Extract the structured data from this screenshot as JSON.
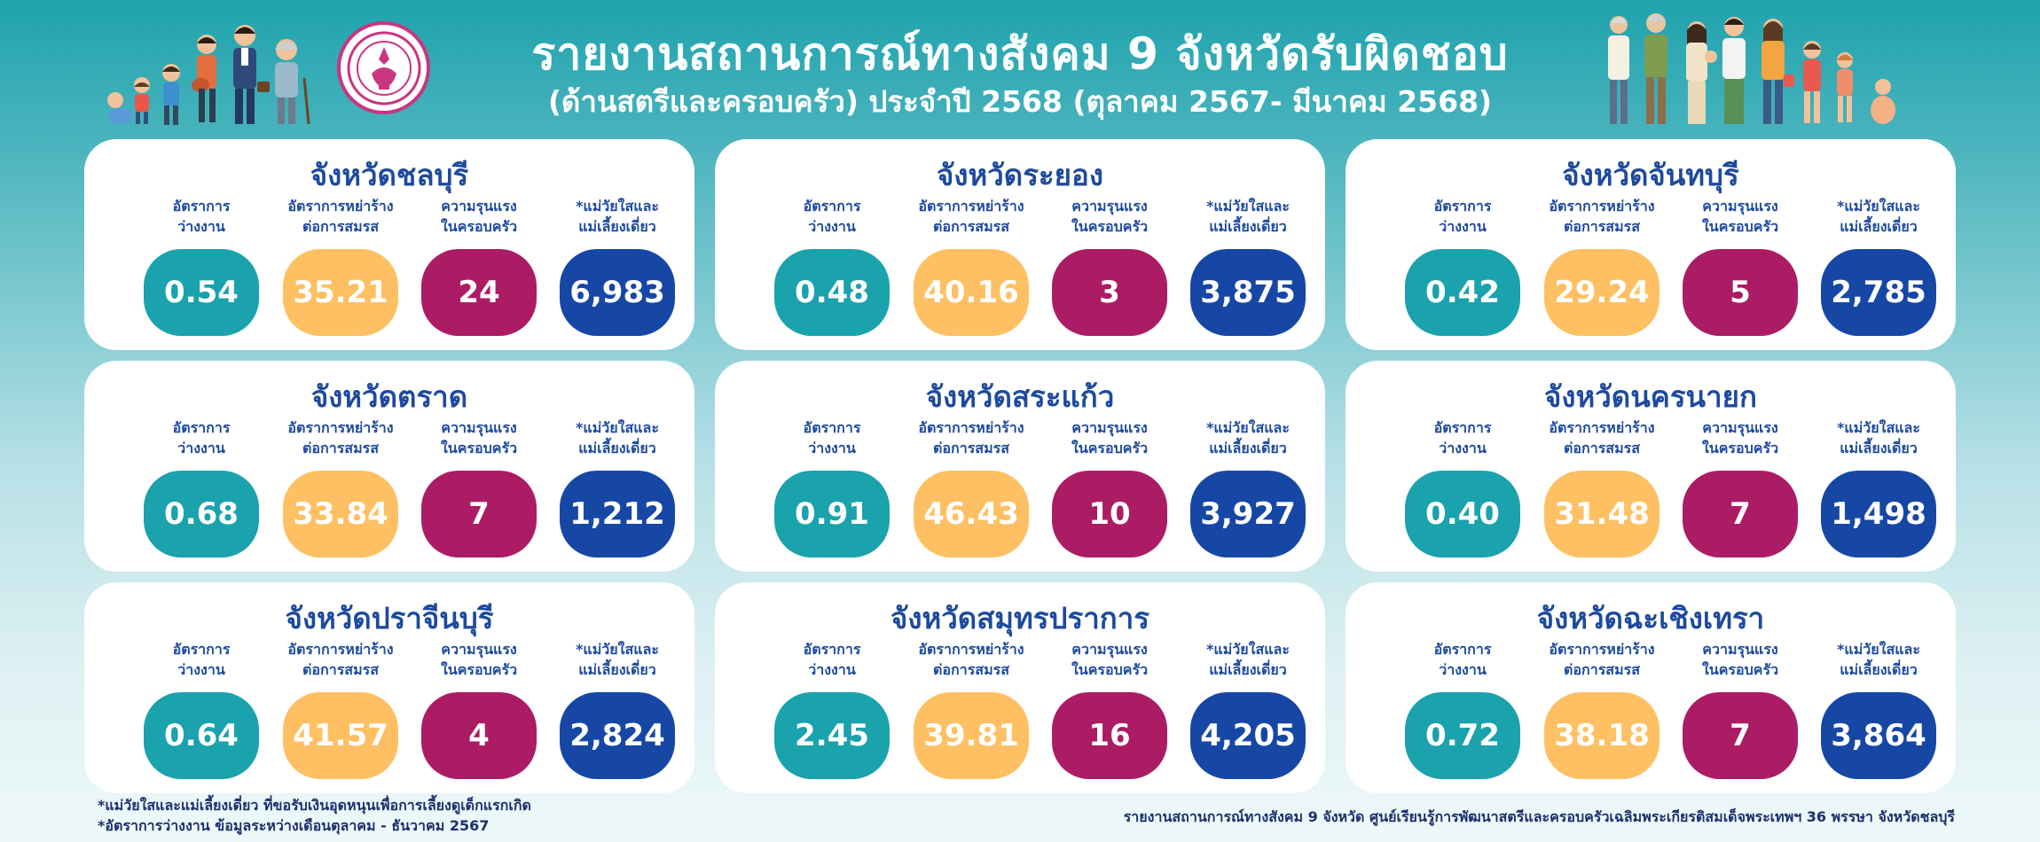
{
  "header": {
    "title_line1": "รายงานสถานการณ์ทางสังคม 9 จังหวัดรับผิดชอบ",
    "title_line2": "(ด้านสตรีและครอบครัว) ประจำปี 2568 (ตุลาคม 2567- มีนาคม 2568)"
  },
  "labels": {
    "unemployment": [
      "อัตราการ",
      "ว่างงาน"
    ],
    "divorce": [
      "อัตราการหย่าร้าง",
      "ต่อการสมรส"
    ],
    "violence": [
      "ความรุนแรง",
      "ในครอบครัว"
    ],
    "mothers": [
      "*แม่วัยใสและ",
      "แม่เลี้ยงเดี่ยว"
    ]
  },
  "provinces": [
    {
      "name": "จังหวัดชลบุรี",
      "unemployment": "0.54",
      "divorce": "35.21",
      "violence": "24",
      "mothers": "6,983"
    },
    {
      "name": "จังหวัดระยอง",
      "unemployment": "0.48",
      "divorce": "40.16",
      "violence": "3",
      "mothers": "3,875"
    },
    {
      "name": "จังหวัดจันทบุรี",
      "unemployment": "0.42",
      "divorce": "29.24",
      "violence": "5",
      "mothers": "2,785"
    },
    {
      "name": "จังหวัดตราด",
      "unemployment": "0.68",
      "divorce": "33.84",
      "violence": "7",
      "mothers": "1,212"
    },
    {
      "name": "จังหวัดสระแก้ว",
      "unemployment": "0.91",
      "divorce": "46.43",
      "violence": "10",
      "mothers": "3,927"
    },
    {
      "name": "จังหวัดนครนายก",
      "unemployment": "0.40",
      "divorce": "31.48",
      "violence": "7",
      "mothers": "1,498"
    },
    {
      "name": "จังหวัดปราจีนบุรี",
      "unemployment": "0.64",
      "divorce": "41.57",
      "violence": "4",
      "mothers": "2,824"
    },
    {
      "name": "จังหวัดสมุทรปราการ",
      "unemployment": "2.45",
      "divorce": "39.81",
      "violence": "16",
      "mothers": "4,205"
    },
    {
      "name": "จังหวัดฉะเชิงเทรา",
      "unemployment": "0.72",
      "divorce": "38.18",
      "violence": "7",
      "mothers": "3,864"
    }
  ],
  "footer": {
    "note1": "*แม่วัยใสและแม่เลี้ยงเดี่ยว ที่ขอรับเงินอุดหนุนเพื่อการเลี้ยงดูเด็กแรกเกิด",
    "note2": "*อัตราการว่างงาน ข้อมูลระหว่างเดือนตุลาคม - ธันวาคม 2567",
    "source": "รายงานสถานการณ์ทางสังคม 9 จังหวัด ศูนย์เรียนรู้การพัฒนาสตรีและครอบครัวเฉลิมพระเกียรติสมเด็จพระเทพฯ 36 พรรษา จังหวัดชลบุรี"
  },
  "colors": {
    "teal": "#1aa2ad",
    "yellow": "#fec063",
    "magenta": "#ab1c65",
    "navy": "#1747a5",
    "title_blue": "#1d4a9e"
  },
  "icons": {
    "left_illustration": "family-generations-illustration",
    "seal": "department-seal-icon",
    "right_illustration": "diverse-people-illustration"
  }
}
